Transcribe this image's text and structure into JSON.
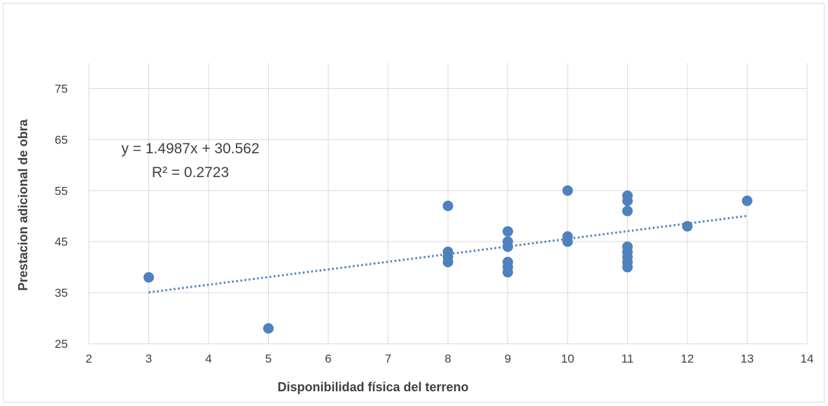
{
  "chart_data": {
    "type": "scatter",
    "xlabel": "Disponibilidad física del terreno",
    "ylabel": "Prestacion adicional de obra",
    "xlim": [
      2,
      14
    ],
    "ylim": [
      25,
      80
    ],
    "x_ticks": [
      "2",
      "3",
      "4",
      "5",
      "6",
      "7",
      "8",
      "9",
      "10",
      "11",
      "12",
      "13",
      "14"
    ],
    "y_ticks": [
      "25",
      "35",
      "45",
      "55",
      "65",
      "75"
    ],
    "grid": true,
    "series": [
      {
        "color": "#4f81bd",
        "points": [
          [
            3,
            38
          ],
          [
            5,
            28
          ],
          [
            8,
            52
          ],
          [
            8,
            43
          ],
          [
            8,
            42
          ],
          [
            8,
            41
          ],
          [
            9,
            47
          ],
          [
            9,
            45
          ],
          [
            9,
            44
          ],
          [
            9,
            41
          ],
          [
            9,
            40
          ],
          [
            9,
            39
          ],
          [
            10,
            55
          ],
          [
            10,
            46
          ],
          [
            10,
            45
          ],
          [
            11,
            54
          ],
          [
            11,
            53
          ],
          [
            11,
            51
          ],
          [
            11,
            44
          ],
          [
            11,
            43
          ],
          [
            11,
            42
          ],
          [
            11,
            41
          ],
          [
            11,
            40
          ],
          [
            12,
            48
          ],
          [
            13,
            53
          ]
        ]
      }
    ],
    "trendline": {
      "type": "linear",
      "slope": 1.4987,
      "intercept": 30.562,
      "x_range": [
        3,
        13
      ],
      "equation_label": "y = 1.4987x + 30.562",
      "r2_label": "R² = 0.2723",
      "color": "#4f81bd"
    },
    "colors": {
      "grid": "#d9d9d9",
      "text": "#404040",
      "marker": "#4f81bd"
    }
  }
}
